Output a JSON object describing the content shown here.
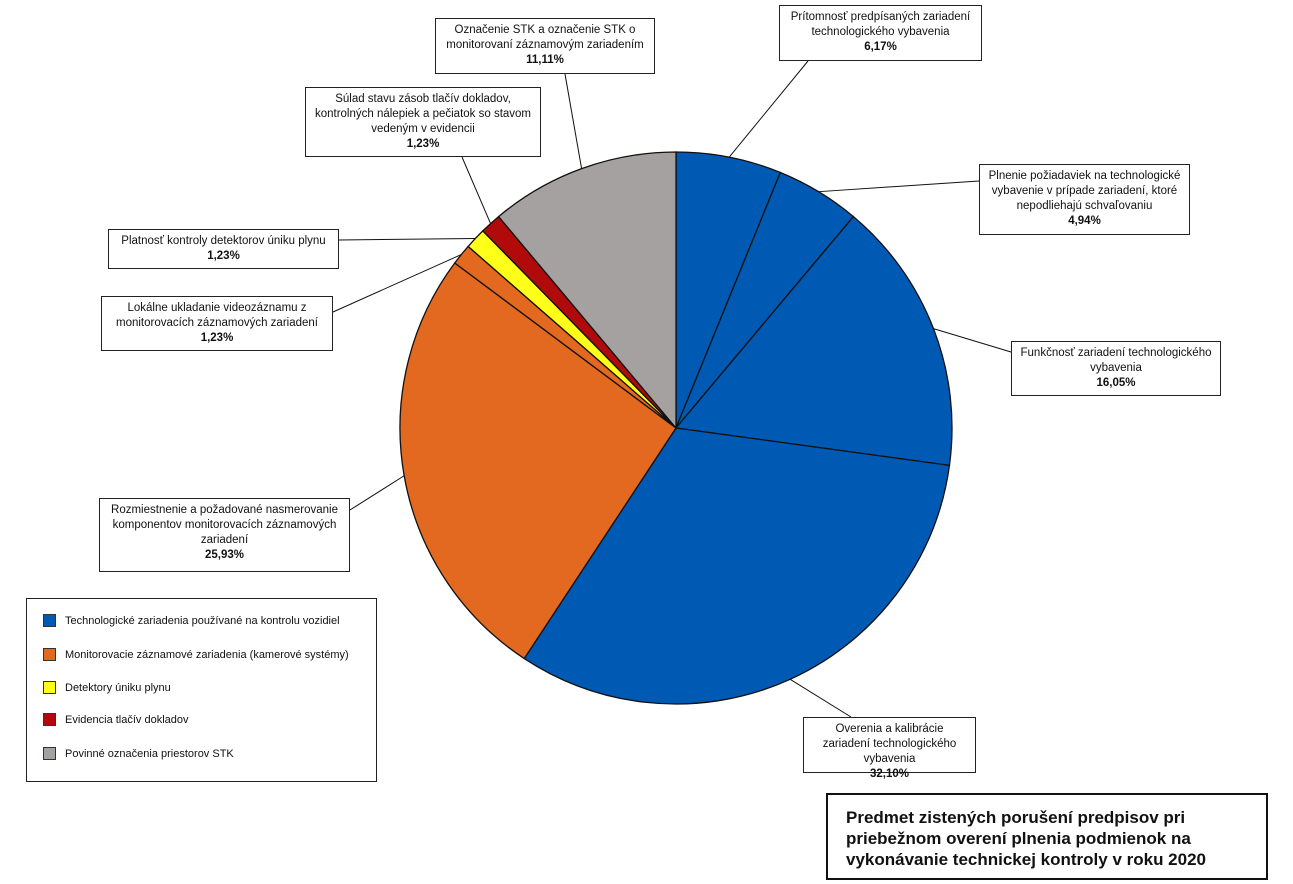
{
  "chart_data": {
    "type": "pie",
    "title": "Predmet zistených porušení predpisov pri priebežnom overení plnenia podmienok na vykonávanie technickej kontroly v roku 2020",
    "legend_position": "bottom-left",
    "legend": [
      {
        "label": "Technologické zariadenia používané na kontrolu vozidiel",
        "color": "#0059b3"
      },
      {
        "label": "Monitorovacie záznamové zariadenia (kamerové systémy)",
        "color": "#e2691f"
      },
      {
        "label": "Detektory úniku plynu",
        "color": "#ffff1a"
      },
      {
        "label": "Evidencia tlačív dokladov",
        "color": "#b00a0a"
      },
      {
        "label": "Povinné označenia priestorov STK",
        "color": "#a5a1a1"
      }
    ],
    "slices": [
      {
        "id": "pritomnost",
        "label": "Prítomnosť predpísaných zariadení technologického vybavenia",
        "value": 6.17,
        "value_label": "6,17%",
        "color": "#0059b3"
      },
      {
        "id": "plnenie",
        "label": "Plnenie požiadaviek na technologické vybavenie v prípade zariadení, ktoré nepodliehajú schvaľovaniu",
        "value": 4.94,
        "value_label": "4,94%",
        "color": "#0059b3"
      },
      {
        "id": "funkcnost",
        "label": "Funkčnosť zariadení technologického vybavenia",
        "value": 16.05,
        "value_label": "16,05%",
        "color": "#0059b3"
      },
      {
        "id": "overenia",
        "label": "Overenia a kalibrácie zariadení technologického vybavenia",
        "value": 32.1,
        "value_label": "32,10%",
        "color": "#0059b3"
      },
      {
        "id": "rozmiestnenie",
        "label": "Rozmiestnenie a požadované nasmerovanie komponentov monitorovacích záznamových zariadení",
        "value": 25.93,
        "value_label": "25,93%",
        "color": "#e2691f"
      },
      {
        "id": "lokalne",
        "label": "Lokálne ukladanie videozáznamu z monitorovacích záznamových zariadení",
        "value": 1.23,
        "value_label": "1,23%",
        "color": "#e2691f"
      },
      {
        "id": "platnost",
        "label": "Platnosť kontroly detektorov úniku plynu",
        "value": 1.23,
        "value_label": "1,23%",
        "color": "#ffff1a"
      },
      {
        "id": "sulad",
        "label": "Súlad stavu zásob tlačív dokladov, kontrolných nálepiek a pečiatok so stavom vedeným v evidencii",
        "value": 1.23,
        "value_label": "1,23%",
        "color": "#b00a0a"
      },
      {
        "id": "oznacenie",
        "label": "Označenie STK a označenie STK o monitorovaní záznamovým zariadením",
        "value": 11.11,
        "value_label": "11,11%",
        "color": "#a5a1a1"
      }
    ]
  }
}
